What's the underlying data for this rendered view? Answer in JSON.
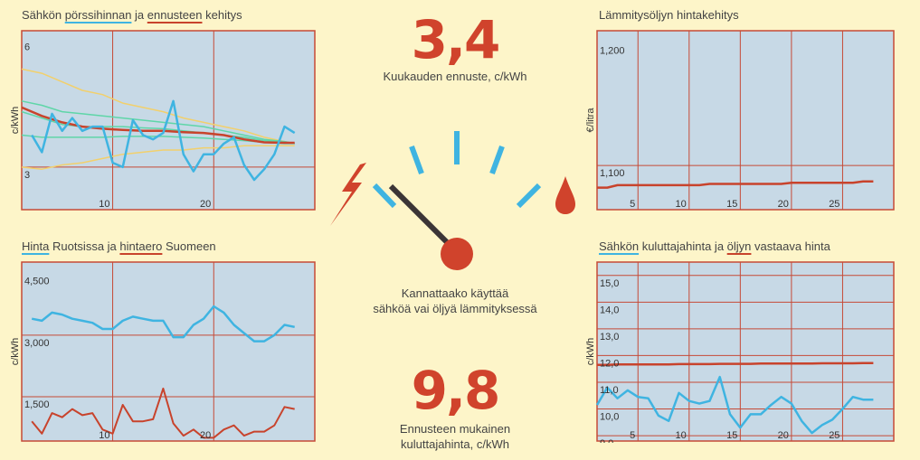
{
  "colors": {
    "bg": "#fdf5c9",
    "plot": "#c7d9e6",
    "grid": "#c64a37",
    "blue": "#3fb4e1",
    "red": "#c8432c",
    "green": "#5fd6a8",
    "yellow": "#f2d06c",
    "big": "#d0432c"
  },
  "center": {
    "monthly_value": "3,4",
    "monthly_caption": "Kuukauden ennuste, c/kWh",
    "gauge_caption_1": "Kannattaako käyttää",
    "gauge_caption_2": "sähköä vai öljyä lämmityksessä",
    "consumer_value": "9,8",
    "consumer_caption_1": "Ennusteen mukainen",
    "consumer_caption_2": "kuluttajahinta, c/kWh",
    "left_icon": "lightning-icon",
    "right_icon": "oil-drop-icon"
  },
  "titles": {
    "c1": {
      "a": "Sähkön ",
      "b": "pörssihinnan",
      "c": " ja ",
      "d": "ennusteen",
      "e": " kehitys"
    },
    "c2": {
      "a": "Lämmitysöljyn hintakehitys"
    },
    "c3": {
      "b": "Hinta",
      "c": " Ruotsissa ja ",
      "d": "hintaero",
      "e": " Suomeen"
    },
    "c4": {
      "b": "Sähkön",
      "c": " kuluttajahinta ja ",
      "d": "öljyn",
      "e": " vastaava hinta"
    }
  },
  "chart_data": [
    {
      "type": "line",
      "title": "Sähkön pörssihinnan ja ennusteen kehitys",
      "ylabel": "c/kWh",
      "xlim": [
        1,
        30
      ],
      "ylim": [
        2.0,
        6.2
      ],
      "yticks": [
        {
          "v": 6,
          "l": "6"
        },
        {
          "v": 3,
          "l": "3"
        }
      ],
      "xticks": [
        {
          "v": 10,
          "l": "10"
        },
        {
          "v": 20,
          "l": "20"
        }
      ],
      "vgrid": [
        10,
        20
      ],
      "hgrid": [
        3
      ],
      "series": [
        {
          "color": "yellow",
          "width": 1.5,
          "x": [
            1,
            3,
            5,
            7,
            9,
            11,
            13,
            15,
            17,
            19,
            21,
            23,
            25,
            27,
            28
          ],
          "y": [
            5.3,
            5.2,
            5.0,
            4.8,
            4.7,
            4.5,
            4.4,
            4.3,
            4.15,
            4.05,
            3.95,
            3.85,
            3.7,
            3.6,
            3.55
          ]
        },
        {
          "color": "yellow",
          "width": 1.5,
          "x": [
            1,
            3,
            5,
            7,
            9,
            11,
            13,
            15,
            17,
            19,
            21,
            23,
            25,
            27,
            28
          ],
          "y": [
            3.0,
            2.95,
            3.05,
            3.1,
            3.2,
            3.3,
            3.35,
            3.4,
            3.4,
            3.45,
            3.45,
            3.5,
            3.5,
            3.5,
            3.5
          ]
        },
        {
          "color": "green",
          "width": 1.5,
          "x": [
            1,
            3,
            5,
            7,
            9,
            11,
            13,
            15,
            17,
            19,
            21,
            23,
            25,
            27,
            28
          ],
          "y": [
            4.55,
            4.45,
            4.3,
            4.25,
            4.2,
            4.15,
            4.1,
            4.05,
            4.0,
            3.95,
            3.85,
            3.75,
            3.65,
            3.6,
            3.55
          ]
        },
        {
          "color": "green",
          "width": 1.5,
          "x": [
            1,
            3,
            5,
            7,
            9,
            11,
            13,
            15,
            17,
            19,
            21,
            23,
            25,
            27,
            28
          ],
          "y": [
            3.75,
            3.7,
            3.7,
            3.7,
            3.7,
            3.72,
            3.72,
            3.72,
            3.7,
            3.68,
            3.65,
            3.62,
            3.58,
            3.55,
            3.55
          ]
        },
        {
          "color": "green",
          "width": 1.5,
          "x": [
            1,
            3,
            5,
            7,
            9,
            11,
            13,
            15,
            17,
            19,
            21,
            23,
            25,
            27,
            28
          ],
          "y": [
            4.3,
            4.15,
            4.0,
            3.95,
            3.95,
            3.95,
            3.92,
            3.9,
            3.85,
            3.8,
            3.75,
            3.7,
            3.62,
            3.58,
            3.55
          ]
        },
        {
          "color": "red",
          "width": 2.5,
          "x": [
            1,
            3,
            5,
            7,
            9,
            11,
            13,
            15,
            17,
            19,
            21,
            23,
            25,
            27,
            28
          ],
          "y": [
            4.4,
            4.2,
            4.05,
            3.95,
            3.9,
            3.87,
            3.85,
            3.85,
            3.82,
            3.8,
            3.75,
            3.65,
            3.58,
            3.57,
            3.57
          ]
        },
        {
          "color": "blue",
          "width": 2.5,
          "x": [
            2,
            3,
            4,
            5,
            6,
            7,
            8,
            9,
            10,
            11,
            12,
            13,
            14,
            15,
            16,
            17,
            18,
            19,
            20,
            21,
            22,
            23,
            24,
            25,
            26,
            27,
            28
          ],
          "y": [
            3.75,
            3.35,
            4.25,
            3.85,
            4.15,
            3.85,
            3.95,
            3.95,
            3.1,
            3.0,
            4.1,
            3.75,
            3.65,
            3.8,
            4.55,
            3.3,
            2.9,
            3.3,
            3.3,
            3.55,
            3.7,
            3.05,
            2.7,
            2.95,
            3.3,
            3.95,
            3.8
          ]
        }
      ]
    },
    {
      "type": "line",
      "title": "Lämmitysöljyn hintakehitys",
      "ylabel": "€/litra",
      "xlim": [
        1,
        30
      ],
      "ylim": [
        1.064,
        1.21
      ],
      "yticks": [
        {
          "v": 1.2,
          "l": "1,200"
        },
        {
          "v": 1.1,
          "l": "1,100"
        }
      ],
      "xticks": [
        {
          "v": 5,
          "l": "5"
        },
        {
          "v": 10,
          "l": "10"
        },
        {
          "v": 15,
          "l": "15"
        },
        {
          "v": 20,
          "l": "20"
        },
        {
          "v": 25,
          "l": "25"
        }
      ],
      "vgrid": [
        5,
        10,
        15,
        20,
        25
      ],
      "hgrid": [
        1.1
      ],
      "series": [
        {
          "color": "red",
          "width": 2.5,
          "x": [
            1,
            2,
            3,
            4,
            5,
            6,
            7,
            8,
            9,
            10,
            11,
            12,
            13,
            14,
            15,
            16,
            17,
            18,
            19,
            20,
            21,
            22,
            23,
            24,
            25,
            26,
            27,
            28
          ],
          "y": [
            1.082,
            1.082,
            1.084,
            1.084,
            1.084,
            1.084,
            1.084,
            1.084,
            1.084,
            1.084,
            1.084,
            1.085,
            1.085,
            1.085,
            1.085,
            1.085,
            1.085,
            1.085,
            1.085,
            1.086,
            1.086,
            1.086,
            1.086,
            1.086,
            1.086,
            1.086,
            1.087,
            1.087
          ]
        }
      ]
    },
    {
      "type": "line",
      "title": "Hinta Ruotsissa ja hintaero Suomeen",
      "ylabel": "c/kWh",
      "xlim": [
        1,
        30
      ],
      "ylim": [
        0.42,
        4.78
      ],
      "yticks": [
        {
          "v": 4.5,
          "l": "4,500"
        },
        {
          "v": 3.0,
          "l": "3,000"
        },
        {
          "v": 1.5,
          "l": "1,500"
        }
      ],
      "xticks": [
        {
          "v": 10,
          "l": "10"
        },
        {
          "v": 20,
          "l": "20"
        }
      ],
      "vgrid": [
        10,
        20
      ],
      "hgrid": [
        3.0,
        1.5
      ],
      "series": [
        {
          "color": "blue",
          "width": 2.5,
          "x": [
            2,
            3,
            4,
            5,
            6,
            7,
            8,
            9,
            10,
            11,
            12,
            13,
            14,
            15,
            16,
            17,
            18,
            19,
            20,
            21,
            22,
            23,
            24,
            25,
            26,
            27,
            28
          ],
          "y": [
            3.4,
            3.35,
            3.55,
            3.5,
            3.4,
            3.35,
            3.3,
            3.15,
            3.15,
            3.35,
            3.45,
            3.4,
            3.35,
            3.35,
            2.95,
            2.95,
            3.25,
            3.4,
            3.7,
            3.55,
            3.25,
            3.05,
            2.85,
            2.85,
            3.0,
            3.25,
            3.2
          ]
        },
        {
          "color": "red",
          "width": 2,
          "x": [
            2,
            3,
            4,
            5,
            6,
            7,
            8,
            9,
            10,
            11,
            12,
            13,
            14,
            15,
            16,
            17,
            18,
            19,
            20,
            21,
            22,
            23,
            24,
            25,
            26,
            27,
            28
          ],
          "y": [
            0.9,
            0.6,
            1.1,
            1.0,
            1.2,
            1.05,
            1.1,
            0.7,
            0.6,
            1.3,
            0.9,
            0.9,
            0.95,
            1.7,
            0.85,
            0.55,
            0.7,
            0.5,
            0.5,
            0.7,
            0.8,
            0.55,
            0.65,
            0.65,
            0.8,
            1.25,
            1.2
          ]
        }
      ]
    },
    {
      "type": "line",
      "title": "Sähkön kuluttajahinta ja öljyn vastaava hinta",
      "ylabel": "c/kWh",
      "xlim": [
        1,
        30
      ],
      "ylim": [
        8.8,
        15.5
      ],
      "yticks": [
        {
          "v": 15,
          "l": "15,0"
        },
        {
          "v": 14,
          "l": "14,0"
        },
        {
          "v": 13,
          "l": "13,0"
        },
        {
          "v": 12,
          "l": "12,0"
        },
        {
          "v": 11,
          "l": "11,0"
        },
        {
          "v": 10,
          "l": "10,0"
        },
        {
          "v": 9,
          "l": "9,0"
        }
      ],
      "xticks": [
        {
          "v": 5,
          "l": "5"
        },
        {
          "v": 10,
          "l": "10"
        },
        {
          "v": 15,
          "l": "15"
        },
        {
          "v": 20,
          "l": "20"
        },
        {
          "v": 25,
          "l": "25"
        }
      ],
      "vgrid": [
        5,
        10,
        15,
        20,
        25
      ],
      "hgrid": [
        15,
        14,
        13,
        12,
        11,
        10,
        9
      ],
      "series": [
        {
          "color": "red",
          "width": 2.5,
          "x": [
            1,
            2,
            3,
            4,
            5,
            6,
            7,
            8,
            9,
            10,
            11,
            12,
            13,
            14,
            15,
            16,
            17,
            18,
            19,
            20,
            21,
            22,
            23,
            24,
            25,
            26,
            27,
            28
          ],
          "y": [
            11.65,
            11.65,
            11.67,
            11.67,
            11.67,
            11.67,
            11.67,
            11.67,
            11.68,
            11.68,
            11.68,
            11.68,
            11.69,
            11.69,
            11.69,
            11.69,
            11.7,
            11.7,
            11.7,
            11.7,
            11.7,
            11.7,
            11.71,
            11.71,
            11.71,
            11.71,
            11.72,
            11.72
          ]
        },
        {
          "color": "blue",
          "width": 2.5,
          "x": [
            1,
            2,
            3,
            4,
            5,
            6,
            7,
            8,
            9,
            10,
            11,
            12,
            13,
            14,
            15,
            16,
            17,
            18,
            19,
            20,
            21,
            22,
            23,
            24,
            25,
            26,
            27,
            28
          ],
          "y": [
            10.15,
            10.8,
            10.4,
            10.7,
            10.45,
            10.4,
            9.75,
            9.55,
            10.6,
            10.3,
            10.2,
            10.3,
            11.2,
            9.8,
            9.3,
            9.8,
            9.8,
            10.15,
            10.45,
            10.2,
            9.55,
            9.1,
            9.4,
            9.6,
            10.0,
            10.45,
            10.35,
            10.35
          ]
        }
      ]
    }
  ]
}
